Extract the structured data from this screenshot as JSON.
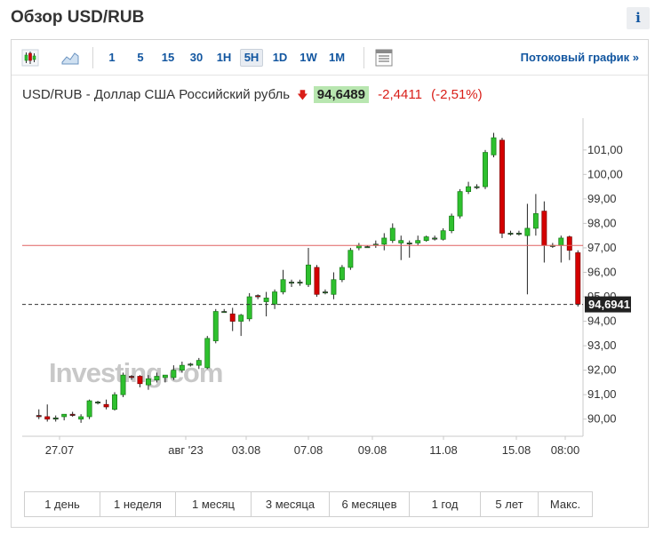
{
  "page": {
    "title": "Обзор USD/RUB",
    "info_label": "i"
  },
  "toolbar": {
    "intervals": [
      "1",
      "5",
      "15",
      "30",
      "1H",
      "5H",
      "1D",
      "1W",
      "1M"
    ],
    "active_interval": "5H",
    "stream_link": "Потоковый график »",
    "icons": [
      "candlestick-icon",
      "area-chart-icon",
      "chart-settings-icon"
    ]
  },
  "quote": {
    "symbol": "USD/RUB",
    "separator": "-",
    "name": "Доллар США Российский рубль",
    "direction_arrow": "🡇",
    "price": "94,6489",
    "change": "-2,4411",
    "change_pct": "(-2,51%)"
  },
  "colors": {
    "up": "#2ec02e",
    "down": "#d40000",
    "accent": "#1256a0",
    "price_bg": "#b8e6b0",
    "ref_line": "#e06060"
  },
  "chart_data": {
    "type": "candlestick",
    "watermark": "Investing.com",
    "ylim": [
      89.3,
      102.3
    ],
    "yticks": [
      90,
      91,
      92,
      93,
      94,
      95,
      96,
      97,
      98,
      99,
      100,
      101
    ],
    "ytick_labels": [
      "90,00",
      "91,00",
      "92,00",
      "93,00",
      "94,00",
      "95,00",
      "96,00",
      "97,00",
      "98,00",
      "99,00",
      "100,00",
      "101,00"
    ],
    "x_labels": [
      "27.07",
      "авг '23",
      "03.08",
      "07.08",
      "09.08",
      "11.08",
      "15.08",
      "08:00"
    ],
    "x_label_slots": [
      0,
      1,
      1,
      1,
      1,
      1,
      1,
      1
    ],
    "reference_line": 97.1,
    "current_price_label": "94,6941",
    "current_price": 94.69,
    "candles": [
      {
        "o": 90.15,
        "h": 90.4,
        "l": 90.0,
        "c": 90.1
      },
      {
        "o": 90.1,
        "h": 90.6,
        "l": 89.9,
        "c": 90.0
      },
      {
        "o": 90.0,
        "h": 90.15,
        "l": 89.9,
        "c": 90.05
      },
      {
        "o": 90.1,
        "h": 90.2,
        "l": 89.95,
        "c": 90.2
      },
      {
        "o": 90.2,
        "h": 90.3,
        "l": 90.1,
        "c": 90.15
      },
      {
        "o": 90.0,
        "h": 90.2,
        "l": 89.85,
        "c": 90.1
      },
      {
        "o": 90.1,
        "h": 90.8,
        "l": 90.0,
        "c": 90.75
      },
      {
        "o": 90.7,
        "h": 90.75,
        "l": 90.6,
        "c": 90.7
      },
      {
        "o": 90.6,
        "h": 90.8,
        "l": 90.4,
        "c": 90.5
      },
      {
        "o": 90.4,
        "h": 91.1,
        "l": 90.35,
        "c": 91.0
      },
      {
        "o": 91.0,
        "h": 91.9,
        "l": 90.9,
        "c": 91.8
      },
      {
        "o": 91.75,
        "h": 91.8,
        "l": 91.6,
        "c": 91.7
      },
      {
        "o": 91.75,
        "h": 91.8,
        "l": 91.3,
        "c": 91.45
      },
      {
        "o": 91.4,
        "h": 91.8,
        "l": 91.2,
        "c": 91.65
      },
      {
        "o": 91.6,
        "h": 91.9,
        "l": 91.5,
        "c": 91.75
      },
      {
        "o": 91.7,
        "h": 91.8,
        "l": 91.5,
        "c": 91.8
      },
      {
        "o": 91.7,
        "h": 92.2,
        "l": 91.6,
        "c": 92.0
      },
      {
        "o": 92.0,
        "h": 92.35,
        "l": 91.9,
        "c": 92.2
      },
      {
        "o": 92.25,
        "h": 92.3,
        "l": 92.15,
        "c": 92.25
      },
      {
        "o": 92.2,
        "h": 92.5,
        "l": 92.05,
        "c": 92.4
      },
      {
        "o": 92.1,
        "h": 93.4,
        "l": 92.05,
        "c": 93.3
      },
      {
        "o": 93.2,
        "h": 94.5,
        "l": 93.1,
        "c": 94.4
      },
      {
        "o": 94.4,
        "h": 94.5,
        "l": 94.35,
        "c": 94.4
      },
      {
        "o": 94.3,
        "h": 94.55,
        "l": 93.6,
        "c": 94.0
      },
      {
        "o": 94.0,
        "h": 94.3,
        "l": 93.4,
        "c": 94.25
      },
      {
        "o": 94.1,
        "h": 95.15,
        "l": 94.0,
        "c": 95.0
      },
      {
        "o": 95.05,
        "h": 95.1,
        "l": 94.9,
        "c": 95.0
      },
      {
        "o": 94.8,
        "h": 95.2,
        "l": 94.2,
        "c": 94.95
      },
      {
        "o": 94.7,
        "h": 95.3,
        "l": 94.5,
        "c": 95.2
      },
      {
        "o": 95.2,
        "h": 96.1,
        "l": 95.1,
        "c": 95.7
      },
      {
        "o": 95.6,
        "h": 95.7,
        "l": 95.4,
        "c": 95.6
      },
      {
        "o": 95.6,
        "h": 95.7,
        "l": 95.45,
        "c": 95.6
      },
      {
        "o": 95.5,
        "h": 97.0,
        "l": 95.4,
        "c": 96.3
      },
      {
        "o": 96.2,
        "h": 96.3,
        "l": 95.0,
        "c": 95.1
      },
      {
        "o": 95.2,
        "h": 95.3,
        "l": 95.1,
        "c": 95.2
      },
      {
        "o": 95.1,
        "h": 96.0,
        "l": 94.9,
        "c": 95.7
      },
      {
        "o": 95.7,
        "h": 96.3,
        "l": 95.6,
        "c": 96.2
      },
      {
        "o": 96.2,
        "h": 97.0,
        "l": 96.1,
        "c": 96.9
      },
      {
        "o": 97.0,
        "h": 97.2,
        "l": 96.9,
        "c": 97.1
      },
      {
        "o": 97.05,
        "h": 97.1,
        "l": 97.0,
        "c": 97.05
      },
      {
        "o": 97.1,
        "h": 97.3,
        "l": 97.0,
        "c": 97.15
      },
      {
        "o": 97.15,
        "h": 97.6,
        "l": 96.9,
        "c": 97.4
      },
      {
        "o": 97.3,
        "h": 98.0,
        "l": 97.2,
        "c": 97.8
      },
      {
        "o": 97.2,
        "h": 97.5,
        "l": 96.5,
        "c": 97.3
      },
      {
        "o": 97.2,
        "h": 97.3,
        "l": 96.6,
        "c": 97.2
      },
      {
        "o": 97.2,
        "h": 97.5,
        "l": 97.1,
        "c": 97.3
      },
      {
        "o": 97.3,
        "h": 97.5,
        "l": 97.25,
        "c": 97.45
      },
      {
        "o": 97.4,
        "h": 97.5,
        "l": 97.3,
        "c": 97.4
      },
      {
        "o": 97.35,
        "h": 97.8,
        "l": 97.3,
        "c": 97.7
      },
      {
        "o": 97.7,
        "h": 98.4,
        "l": 97.6,
        "c": 98.3
      },
      {
        "o": 98.3,
        "h": 99.4,
        "l": 98.2,
        "c": 99.3
      },
      {
        "o": 99.3,
        "h": 99.7,
        "l": 99.2,
        "c": 99.5
      },
      {
        "o": 99.5,
        "h": 99.6,
        "l": 99.4,
        "c": 99.5
      },
      {
        "o": 99.5,
        "h": 101.0,
        "l": 99.4,
        "c": 100.9
      },
      {
        "o": 100.8,
        "h": 101.7,
        "l": 100.7,
        "c": 101.5
      },
      {
        "o": 101.4,
        "h": 101.5,
        "l": 97.4,
        "c": 97.6
      },
      {
        "o": 97.6,
        "h": 97.7,
        "l": 97.5,
        "c": 97.6
      },
      {
        "o": 97.6,
        "h": 97.7,
        "l": 97.5,
        "c": 97.6
      },
      {
        "o": 97.5,
        "h": 98.8,
        "l": 95.1,
        "c": 97.8
      },
      {
        "o": 97.8,
        "h": 99.2,
        "l": 97.5,
        "c": 98.4
      },
      {
        "o": 98.5,
        "h": 98.9,
        "l": 96.4,
        "c": 97.1
      },
      {
        "o": 97.1,
        "h": 97.2,
        "l": 97.0,
        "c": 97.1
      },
      {
        "o": 97.1,
        "h": 97.5,
        "l": 96.4,
        "c": 97.4
      },
      {
        "o": 97.45,
        "h": 97.5,
        "l": 96.5,
        "c": 96.9
      },
      {
        "o": 96.8,
        "h": 96.9,
        "l": 94.6,
        "c": 94.7
      }
    ]
  },
  "periods": [
    "1 день",
    "1 неделя",
    "1 месяц",
    "3 месяца",
    "6 месяцев",
    "1 год",
    "5 лет",
    "Макс."
  ]
}
